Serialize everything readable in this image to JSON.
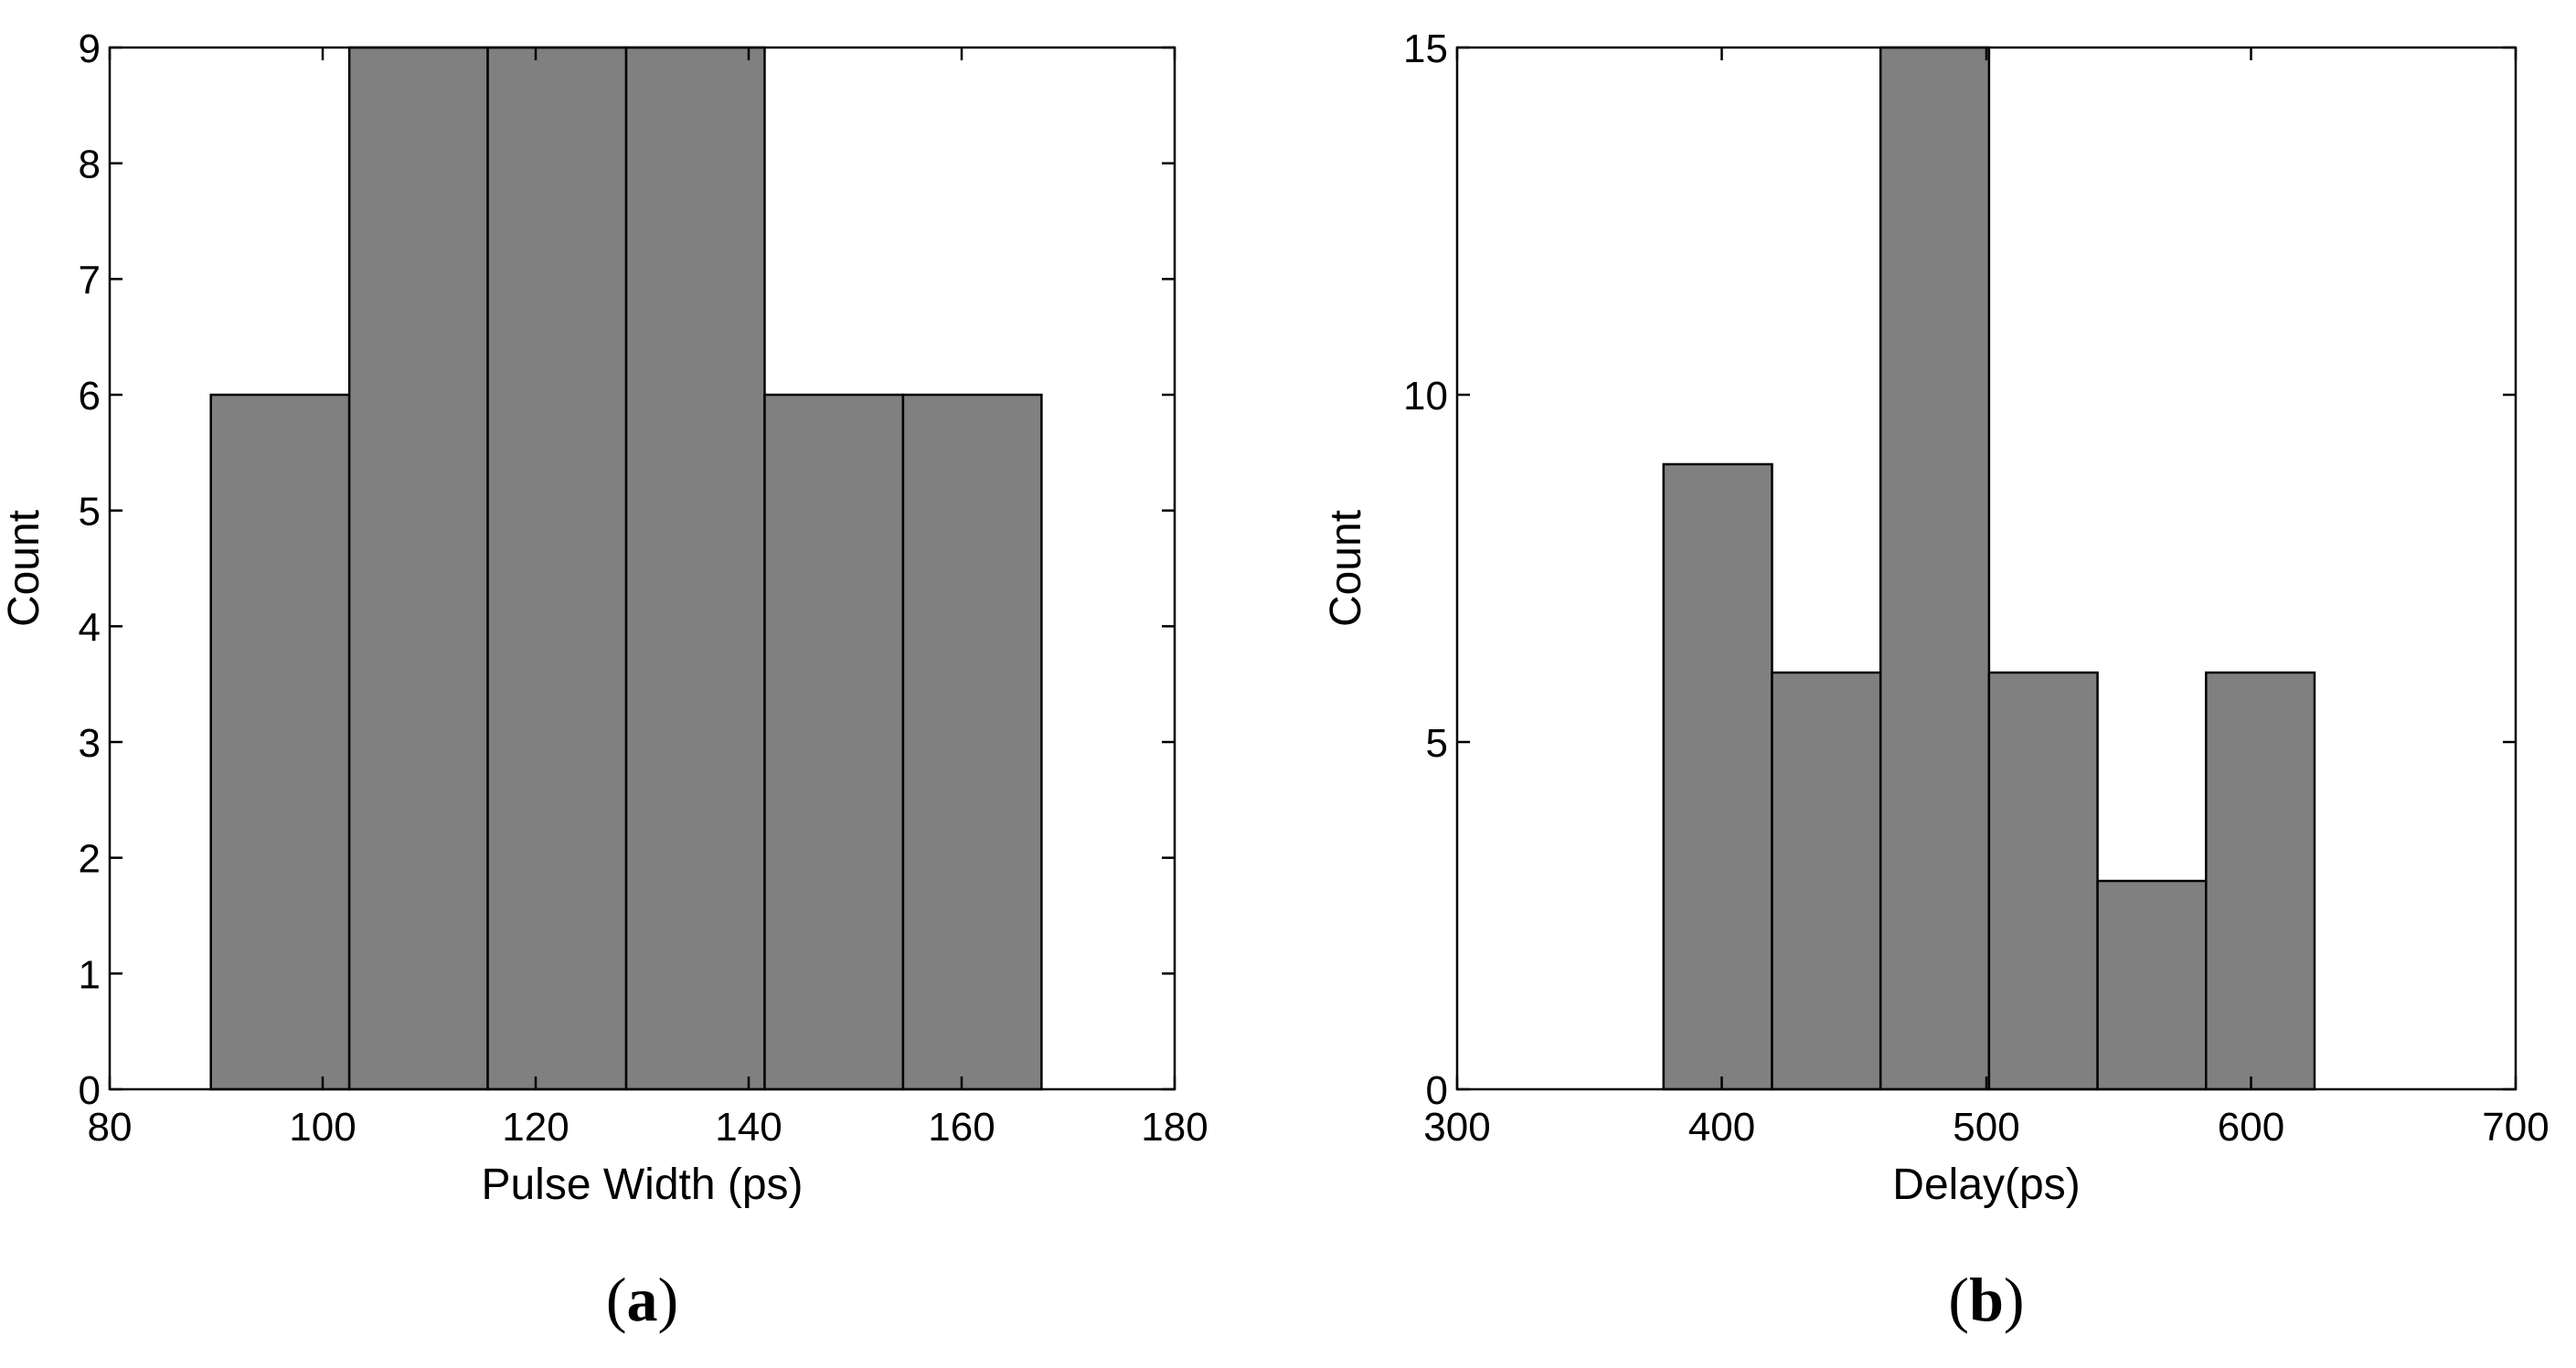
{
  "chart_data": [
    {
      "type": "bar",
      "panel": "(a)",
      "panel_letter": "a",
      "title": "",
      "xlabel": "Pulse Width (ps)",
      "ylabel": "Count",
      "xlim": [
        80,
        180
      ],
      "ylim": [
        0,
        9
      ],
      "xticks": [
        80,
        100,
        120,
        140,
        160,
        180
      ],
      "yticks": [
        0,
        1,
        2,
        3,
        4,
        5,
        6,
        7,
        8,
        9
      ],
      "bin_edges": [
        89.5,
        102.5,
        115.5,
        128.5,
        141.5,
        154.5,
        167.5
      ],
      "values": [
        6,
        9,
        9,
        9,
        6,
        6
      ],
      "bar_color": "#808080",
      "grid": false
    },
    {
      "type": "bar",
      "panel": "(b)",
      "panel_letter": "b",
      "title": "",
      "xlabel": "Delay(ps)",
      "ylabel": "Count",
      "xlim": [
        300,
        700
      ],
      "ylim": [
        0,
        15
      ],
      "xticks": [
        300,
        400,
        500,
        600,
        700
      ],
      "yticks": [
        0,
        5,
        10,
        15
      ],
      "bin_edges": [
        378,
        419,
        460,
        501,
        542,
        583,
        624
      ],
      "values": [
        9,
        6,
        15,
        6,
        3,
        6
      ],
      "bar_color": "#808080",
      "grid": false
    }
  ]
}
